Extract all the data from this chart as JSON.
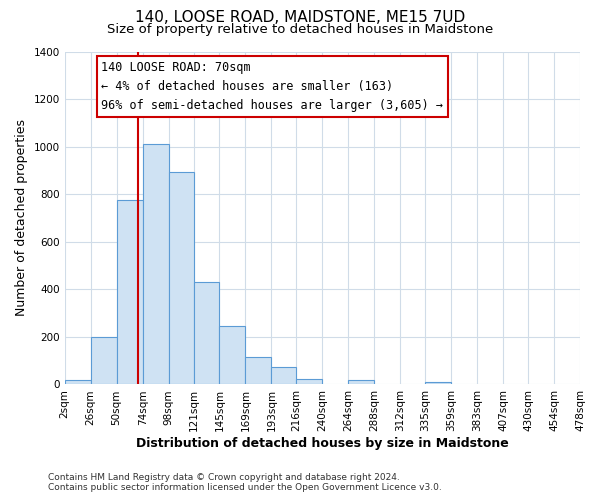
{
  "title": "140, LOOSE ROAD, MAIDSTONE, ME15 7UD",
  "subtitle": "Size of property relative to detached houses in Maidstone",
  "xlabel": "Distribution of detached houses by size in Maidstone",
  "ylabel": "Number of detached properties",
  "footer_line1": "Contains HM Land Registry data © Crown copyright and database right 2024.",
  "footer_line2": "Contains public sector information licensed under the Open Government Licence v3.0.",
  "bar_edges": [
    2,
    26,
    50,
    74,
    98,
    121,
    145,
    169,
    193,
    216,
    240,
    264,
    288,
    312,
    335,
    359,
    383,
    407,
    430,
    454,
    478
  ],
  "bar_heights": [
    20,
    200,
    775,
    1010,
    895,
    430,
    245,
    115,
    72,
    25,
    0,
    18,
    0,
    0,
    12,
    0,
    0,
    0,
    0,
    0
  ],
  "bar_color": "#cfe2f3",
  "bar_edgecolor": "#5b9bd5",
  "vline_x": 70,
  "vline_color": "#cc0000",
  "annotation_title": "140 LOOSE ROAD: 70sqm",
  "annotation_line1": "← 4% of detached houses are smaller (163)",
  "annotation_line2": "96% of semi-detached houses are larger (3,605) →",
  "annotation_box_edgecolor": "#cc0000",
  "annotation_box_facecolor": "#ffffff",
  "ylim": [
    0,
    1400
  ],
  "yticks": [
    0,
    200,
    400,
    600,
    800,
    1000,
    1200,
    1400
  ],
  "xtick_labels": [
    "2sqm",
    "26sqm",
    "50sqm",
    "74sqm",
    "98sqm",
    "121sqm",
    "145sqm",
    "169sqm",
    "193sqm",
    "216sqm",
    "240sqm",
    "264sqm",
    "288sqm",
    "312sqm",
    "335sqm",
    "359sqm",
    "383sqm",
    "407sqm",
    "430sqm",
    "454sqm",
    "478sqm"
  ],
  "background_color": "#ffffff",
  "grid_color": "#d0dce8",
  "title_fontsize": 11,
  "subtitle_fontsize": 9.5,
  "axis_label_fontsize": 9,
  "tick_fontsize": 7.5,
  "footer_fontsize": 6.5
}
